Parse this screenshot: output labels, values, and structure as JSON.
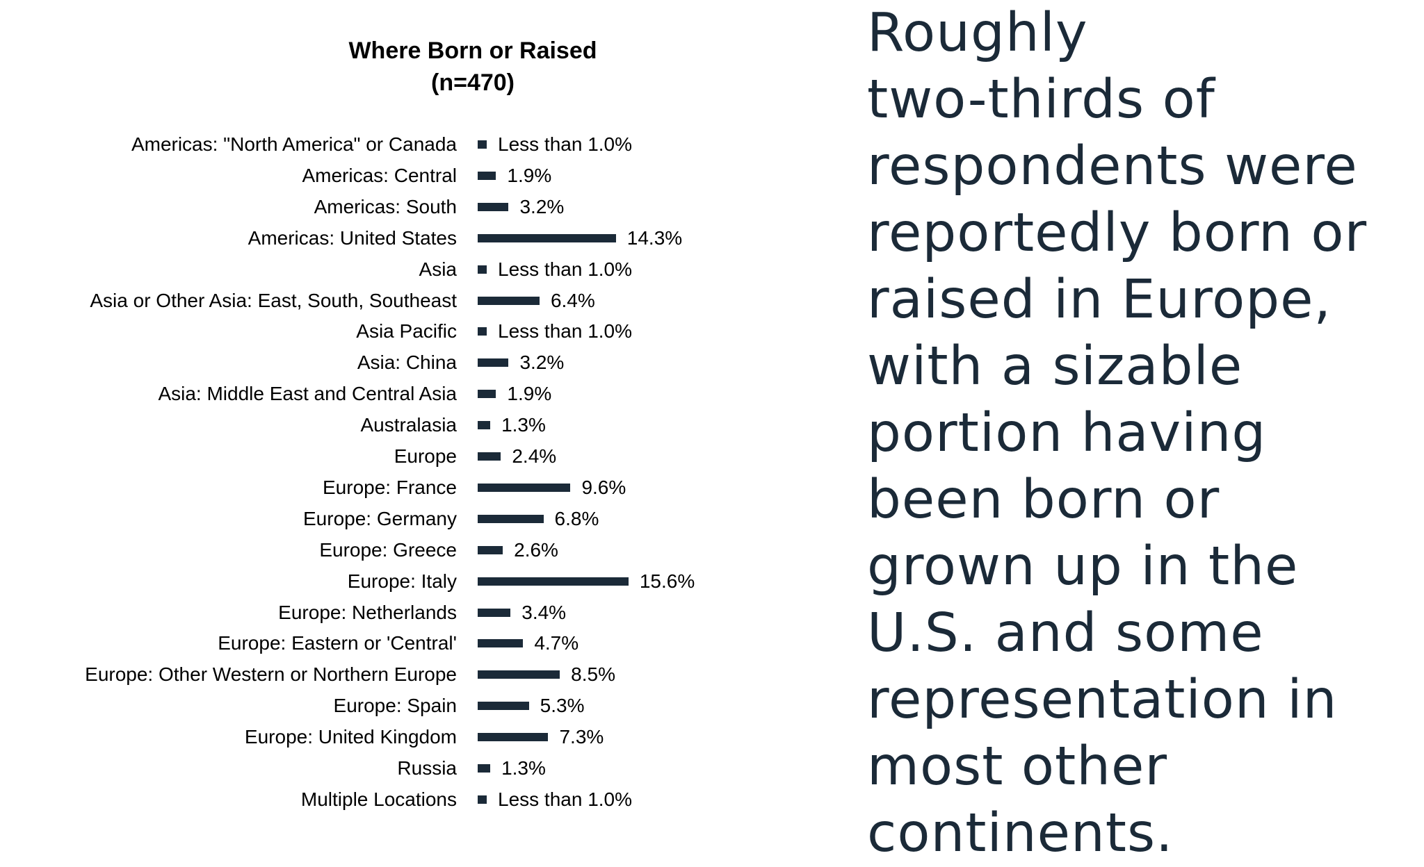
{
  "chart_data": {
    "type": "bar",
    "orientation": "horizontal",
    "title": "Where Born or Raised",
    "subtitle": "(n=470)",
    "categories": [
      "Americas: \"North America\" or Canada",
      "Americas: Central",
      "Americas: South",
      "Americas: United States",
      "Asia",
      "Asia or Other Asia: East, South, Southeast",
      "Asia Pacific",
      "Asia: China",
      "Asia: Middle East and Central Asia",
      "Australasia",
      "Europe",
      "Europe: France",
      "Europe: Germany",
      "Europe: Greece",
      "Europe: Italy",
      "Europe: Netherlands",
      "Europe: Eastern or 'Central'",
      "Europe: Other Western or Northern Europe",
      "Europe: Spain",
      "Europe: United Kingdom",
      "Russia",
      "Multiple Locations"
    ],
    "values": [
      0.9,
      1.9,
      3.2,
      14.3,
      0.9,
      6.4,
      0.9,
      3.2,
      1.9,
      1.3,
      2.4,
      9.6,
      6.8,
      2.6,
      15.6,
      3.4,
      4.7,
      8.5,
      5.3,
      7.3,
      1.3,
      0.9
    ],
    "data_labels": [
      "Less than 1.0%",
      "1.9%",
      "3.2%",
      "14.3%",
      "Less than 1.0%",
      "6.4%",
      "Less than 1.0%",
      "3.2%",
      "1.9%",
      "1.3%",
      "2.4%",
      "9.6%",
      "6.8%",
      "2.6%",
      "15.6%",
      "3.4%",
      "4.7%",
      "8.5%",
      "5.3%",
      "7.3%",
      "1.3%",
      "Less than 1.0%"
    ],
    "xlabel": "",
    "ylabel": "",
    "xlim": [
      0,
      16
    ],
    "grid": false,
    "bar_color": "#1b2a38"
  },
  "side_text": "Roughly two-thirds of respondents were reportedly born or raised in Europe, with a sizable portion having been born or grown up in the U.S. and some representation in most other continents.",
  "side_lines": [
    "Roughly",
    "two-thirds of",
    "respondents were",
    "reportedly born or",
    "raised in Europe,",
    "with a sizable",
    "portion having",
    "been born or",
    "grown up in the",
    "U.S. and some",
    "representation in",
    "most other",
    "continents."
  ]
}
